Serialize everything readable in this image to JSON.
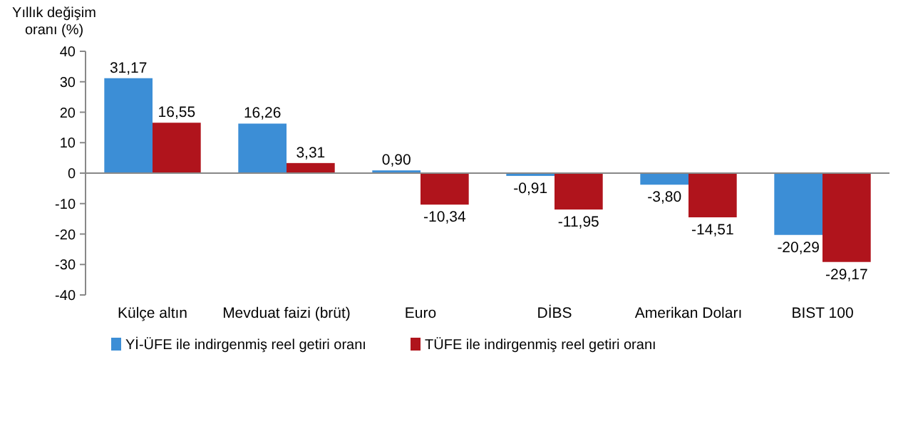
{
  "chart_data": {
    "type": "bar",
    "ylabel": "Yıllık değişim oranı (%)",
    "categories": [
      "Külçe altın",
      "Mevduat faizi (brüt)",
      "Euro",
      "DİBS",
      "Amerikan Doları",
      "BIST 100"
    ],
    "series": [
      {
        "name": "Yİ-ÜFE ile indirgenmiş reel getiri oranı",
        "color": "#3c8ed6",
        "values": [
          31.17,
          16.26,
          0.9,
          -0.91,
          -3.8,
          -20.29
        ],
        "value_labels": [
          "31,17",
          "16,26",
          "0,90",
          "-0,91",
          "-3,80",
          "-20,29"
        ]
      },
      {
        "name": "TÜFE ile indirgenmiş reel getiri oranı",
        "color": "#b0141c",
        "values": [
          16.55,
          3.31,
          -10.34,
          -11.95,
          -14.51,
          -29.17
        ],
        "value_labels": [
          "16,55",
          "3,31",
          "-10,34",
          "-11,95",
          "-14,51",
          "-29,17"
        ]
      }
    ],
    "ylim": [
      -40,
      40
    ],
    "yticks": [
      -40,
      -30,
      -20,
      -10,
      0,
      10,
      20,
      30,
      40
    ],
    "legend": "bottom"
  }
}
